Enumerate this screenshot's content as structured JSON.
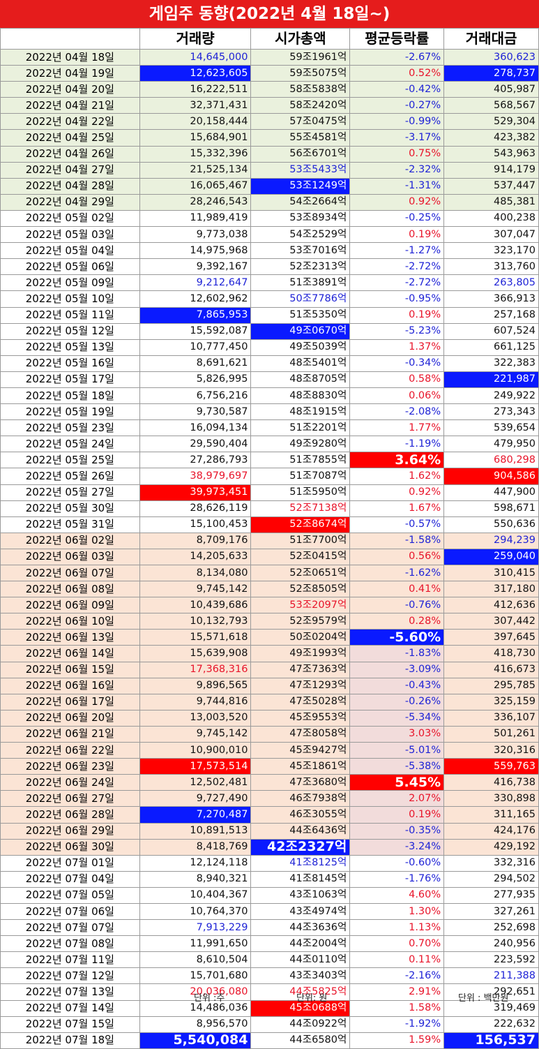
{
  "title": "게임주 동향(2022년 4월 18일~)",
  "headers": [
    "",
    "거래량",
    "시가총액",
    "평균등락률",
    "거래대금"
  ],
  "rows": [
    {
      "bg": "g",
      "date": "2022년 04월 18일",
      "vol": "14,645,000",
      "volS": "blue",
      "cap": "59조1961억",
      "capS": "black",
      "rate": "-2.67%",
      "rateS": "blue",
      "amt": "360,623",
      "amtS": "blue"
    },
    {
      "bg": "g",
      "date": "2022년 04월 19일",
      "vol": "12,623,605",
      "volS": "bgblue",
      "cap": "59조5075억",
      "capS": "black",
      "rate": "0.52%",
      "rateS": "red",
      "amt": "278,737",
      "amtS": "bgblue"
    },
    {
      "bg": "g",
      "date": "2022년 04월 20일",
      "vol": "16,222,511",
      "volS": "black",
      "cap": "58조5838억",
      "capS": "black",
      "rate": "-0.42%",
      "rateS": "blue",
      "amt": "405,987",
      "amtS": "black"
    },
    {
      "bg": "g",
      "date": "2022년 04월 21일",
      "vol": "32,371,431",
      "volS": "black",
      "cap": "58조2420억",
      "capS": "black",
      "rate": "-0.27%",
      "rateS": "blue",
      "amt": "568,567",
      "amtS": "black"
    },
    {
      "bg": "g",
      "date": "2022년 04월 22일",
      "vol": "20,158,444",
      "volS": "black",
      "cap": "57조0475억",
      "capS": "black",
      "rate": "-0.99%",
      "rateS": "blue",
      "amt": "529,304",
      "amtS": "black"
    },
    {
      "bg": "g",
      "date": "2022년 04월 25일",
      "vol": "15,684,901",
      "volS": "black",
      "cap": "55조4581억",
      "capS": "black",
      "rate": "-3.17%",
      "rateS": "blue",
      "amt": "423,382",
      "amtS": "black"
    },
    {
      "bg": "g",
      "date": "2022년 04월 26일",
      "vol": "15,332,396",
      "volS": "black",
      "cap": "56조6701억",
      "capS": "black",
      "rate": "0.75%",
      "rateS": "red",
      "amt": "543,963",
      "amtS": "black"
    },
    {
      "bg": "g",
      "date": "2022년 04월 27일",
      "vol": "21,525,134",
      "volS": "black",
      "cap": "53조5433억",
      "capS": "blue",
      "rate": "-2.32%",
      "rateS": "blue",
      "amt": "914,179",
      "amtS": "black"
    },
    {
      "bg": "g",
      "date": "2022년 04월 28일",
      "vol": "16,065,467",
      "volS": "black",
      "cap": "53조1249억",
      "capS": "bgblue",
      "rate": "-1.31%",
      "rateS": "blue",
      "amt": "537,447",
      "amtS": "black"
    },
    {
      "bg": "g",
      "date": "2022년 04월 29일",
      "vol": "28,246,543",
      "volS": "black",
      "cap": "54조2664억",
      "capS": "black",
      "rate": "0.92%",
      "rateS": "red",
      "amt": "485,381",
      "amtS": "black"
    },
    {
      "bg": "w",
      "date": "2022년 05월 02일",
      "vol": "11,989,419",
      "volS": "black",
      "cap": "53조8934억",
      "capS": "black",
      "rate": "-0.25%",
      "rateS": "blue",
      "amt": "400,238",
      "amtS": "black"
    },
    {
      "bg": "w",
      "date": "2022년 05월 03일",
      "vol": "9,773,038",
      "volS": "black",
      "cap": "54조2529억",
      "capS": "black",
      "rate": "0.19%",
      "rateS": "red",
      "amt": "307,047",
      "amtS": "black"
    },
    {
      "bg": "w",
      "date": "2022년 05월 04일",
      "vol": "14,975,968",
      "volS": "black",
      "cap": "53조7016억",
      "capS": "black",
      "rate": "-1.27%",
      "rateS": "blue",
      "amt": "323,170",
      "amtS": "black"
    },
    {
      "bg": "w",
      "date": "2022년 05월 06일",
      "vol": "9,392,167",
      "volS": "black",
      "cap": "52조2313억",
      "capS": "black",
      "rate": "-2.72%",
      "rateS": "blue",
      "amt": "313,760",
      "amtS": "black"
    },
    {
      "bg": "w",
      "date": "2022년 05월 09일",
      "vol": "9,212,647",
      "volS": "blue",
      "cap": "51조3891억",
      "capS": "black",
      "rate": "-2.72%",
      "rateS": "blue",
      "amt": "263,805",
      "amtS": "blue"
    },
    {
      "bg": "w",
      "date": "2022년 05월 10일",
      "vol": "12,602,962",
      "volS": "black",
      "cap": "50조7786억",
      "capS": "blue",
      "rate": "-0.95%",
      "rateS": "blue",
      "amt": "366,913",
      "amtS": "black"
    },
    {
      "bg": "w",
      "date": "2022년 05월 11일",
      "vol": "7,865,953",
      "volS": "bgblue",
      "cap": "51조5350억",
      "capS": "black",
      "rate": "0.19%",
      "rateS": "red",
      "amt": "257,168",
      "amtS": "black"
    },
    {
      "bg": "w",
      "date": "2022년 05월 12일",
      "vol": "15,592,087",
      "volS": "black",
      "cap": "49조0670억",
      "capS": "bgblue",
      "rate": "-5.23%",
      "rateS": "blue",
      "amt": "607,524",
      "amtS": "black"
    },
    {
      "bg": "w",
      "date": "2022년 05월 13일",
      "vol": "10,777,450",
      "volS": "black",
      "cap": "49조5039억",
      "capS": "black",
      "rate": "1.37%",
      "rateS": "red",
      "amt": "661,125",
      "amtS": "black"
    },
    {
      "bg": "w",
      "date": "2022년 05월 16일",
      "vol": "8,691,621",
      "volS": "black",
      "cap": "48조5401억",
      "capS": "black",
      "rate": "-0.34%",
      "rateS": "blue",
      "amt": "322,383",
      "amtS": "black"
    },
    {
      "bg": "w",
      "date": "2022년 05월 17일",
      "vol": "5,826,995",
      "volS": "black",
      "cap": "48조8705억",
      "capS": "black",
      "rate": "0.58%",
      "rateS": "red",
      "amt": "221,987",
      "amtS": "bgblue"
    },
    {
      "bg": "w",
      "date": "2022년 05월 18일",
      "vol": "6,756,216",
      "volS": "black",
      "cap": "48조8830억",
      "capS": "black",
      "rate": "0.06%",
      "rateS": "red",
      "amt": "249,922",
      "amtS": "black"
    },
    {
      "bg": "w",
      "date": "2022년 05월 19일",
      "vol": "9,730,587",
      "volS": "black",
      "cap": "48조1915억",
      "capS": "black",
      "rate": "-2.08%",
      "rateS": "blue",
      "amt": "273,343",
      "amtS": "black"
    },
    {
      "bg": "w",
      "date": "2022년 05월 23일",
      "vol": "16,094,134",
      "volS": "black",
      "cap": "51조2201억",
      "capS": "black",
      "rate": "1.77%",
      "rateS": "red",
      "amt": "539,654",
      "amtS": "black"
    },
    {
      "bg": "w",
      "date": "2022년 05월 24일",
      "vol": "29,590,404",
      "volS": "black",
      "cap": "49조9280억",
      "capS": "black",
      "rate": "-1.19%",
      "rateS": "blue",
      "amt": "479,950",
      "amtS": "black"
    },
    {
      "bg": "w",
      "date": "2022년 05월 25일",
      "vol": "27,286,793",
      "volS": "black",
      "cap": "51조7855억",
      "capS": "black",
      "rate": "3.64%",
      "rateS": "bgred big",
      "amt": "680,298",
      "amtS": "red"
    },
    {
      "bg": "w",
      "date": "2022년 05월 26일",
      "vol": "38,979,697",
      "volS": "red",
      "cap": "51조7087억",
      "capS": "black",
      "rate": "1.62%",
      "rateS": "red",
      "amt": "904,586",
      "amtS": "bgred"
    },
    {
      "bg": "w",
      "date": "2022년 05월 27일",
      "vol": "39,973,451",
      "volS": "bgred",
      "cap": "51조5950억",
      "capS": "black",
      "rate": "0.92%",
      "rateS": "red",
      "amt": "447,900",
      "amtS": "black"
    },
    {
      "bg": "w",
      "date": "2022년 05월 30일",
      "vol": "28,626,119",
      "volS": "black",
      "cap": "52조7138억",
      "capS": "red",
      "rate": "1.67%",
      "rateS": "red",
      "amt": "598,671",
      "amtS": "black"
    },
    {
      "bg": "w",
      "date": "2022년 05월 31일",
      "vol": "15,100,453",
      "volS": "black",
      "cap": "52조8674억",
      "capS": "bgred",
      "rate": "-0.57%",
      "rateS": "blue",
      "amt": "550,636",
      "amtS": "black"
    },
    {
      "bg": "p",
      "date": "2022년 06월 02일",
      "vol": "8,709,176",
      "volS": "black",
      "cap": "51조7700억",
      "capS": "black",
      "rate": "-1.58%",
      "rateS": "blue",
      "amt": "294,239",
      "amtS": "blue"
    },
    {
      "bg": "p",
      "date": "2022년 06월 03일",
      "vol": "14,205,633",
      "volS": "black",
      "cap": "52조0415억",
      "capS": "black",
      "rate": "0.56%",
      "rateS": "red",
      "amt": "259,040",
      "amtS": "bgblue"
    },
    {
      "bg": "p",
      "date": "2022년 06월 07일",
      "vol": "8,134,080",
      "volS": "black",
      "cap": "52조0651억",
      "capS": "black",
      "rate": "-1.62%",
      "rateS": "blue",
      "amt": "310,415",
      "amtS": "black"
    },
    {
      "bg": "p",
      "date": "2022년 06월 08일",
      "vol": "9,745,142",
      "volS": "black",
      "cap": "52조8505억",
      "capS": "black",
      "rate": "0.41%",
      "rateS": "red",
      "amt": "317,180",
      "amtS": "black"
    },
    {
      "bg": "p",
      "date": "2022년 06월 09일",
      "vol": "10,439,686",
      "volS": "black",
      "cap": "53조2097억",
      "capS": "red",
      "rate": "-0.76%",
      "rateS": "blue",
      "amt": "412,636",
      "amtS": "black"
    },
    {
      "bg": "p",
      "date": "2022년 06월 10일",
      "vol": "10,132,793",
      "volS": "black",
      "cap": "52조9579억",
      "capS": "black",
      "rate": "0.28%",
      "rateS": "red",
      "amt": "307,442",
      "amtS": "black"
    },
    {
      "bg": "p",
      "date": "2022년 06월 13일",
      "vol": "15,571,618",
      "volS": "black",
      "cap": "50조0204억",
      "capS": "black",
      "rate": "-5.60%",
      "rateS": "bgblue big",
      "amt": "397,645",
      "amtS": "black"
    },
    {
      "bg": "p",
      "date": "2022년 06월 14일",
      "vol": "15,639,908",
      "volS": "black",
      "cap": "49조1993억",
      "capS": "black",
      "rate": "-1.83%",
      "rateS": "blue bgpink",
      "amt": "418,730",
      "amtS": "black"
    },
    {
      "bg": "p",
      "date": "2022년 06월 15일",
      "vol": "17,368,316",
      "volS": "red",
      "cap": "47조7363억",
      "capS": "black",
      "rate": "-3.09%",
      "rateS": "blue bgpink",
      "amt": "416,673",
      "amtS": "black"
    },
    {
      "bg": "p",
      "date": "2022년 06월 16일",
      "vol": "9,896,565",
      "volS": "black",
      "cap": "47조1293억",
      "capS": "black",
      "rate": "-0.43%",
      "rateS": "blue bgpink",
      "amt": "295,785",
      "amtS": "black"
    },
    {
      "bg": "p",
      "date": "2022년 06월 17일",
      "vol": "9,744,816",
      "volS": "black",
      "cap": "47조5028억",
      "capS": "black",
      "rate": "-0.26%",
      "rateS": "blue bgpink",
      "amt": "325,159",
      "amtS": "black"
    },
    {
      "bg": "p",
      "date": "2022년 06월 20일",
      "vol": "13,003,520",
      "volS": "black",
      "cap": "45조9553억",
      "capS": "black",
      "rate": "-5.34%",
      "rateS": "blue bgpink",
      "amt": "336,107",
      "amtS": "black"
    },
    {
      "bg": "p",
      "date": "2022년 06월 21일",
      "vol": "9,745,142",
      "volS": "black",
      "cap": "47조8058억",
      "capS": "black",
      "rate": "3.03%",
      "rateS": "red bgpink",
      "amt": "501,261",
      "amtS": "black"
    },
    {
      "bg": "p",
      "date": "2022년 06월 22일",
      "vol": "10,900,010",
      "volS": "black",
      "cap": "45조9427억",
      "capS": "black",
      "rate": "-5.01%",
      "rateS": "blue bgpink",
      "amt": "320,316",
      "amtS": "black"
    },
    {
      "bg": "p",
      "date": "2022년 06월 23일",
      "vol": "17,573,514",
      "volS": "bgred",
      "cap": "45조1861억",
      "capS": "black",
      "rate": "-5.38%",
      "rateS": "blue bgpink",
      "amt": "559,763",
      "amtS": "bgred"
    },
    {
      "bg": "p",
      "date": "2022년 06월 24일",
      "vol": "12,502,481",
      "volS": "black",
      "cap": "47조3680억",
      "capS": "black",
      "rate": "5.45%",
      "rateS": "bgred big",
      "amt": "416,738",
      "amtS": "black"
    },
    {
      "bg": "p",
      "date": "2022년 06월 27일",
      "vol": "9,727,490",
      "volS": "black",
      "cap": "46조7938억",
      "capS": "black",
      "rate": "2.07%",
      "rateS": "red bgpink",
      "amt": "330,898",
      "amtS": "black"
    },
    {
      "bg": "p",
      "date": "2022년 06월 28일",
      "vol": "7,270,487",
      "volS": "bgblue",
      "cap": "46조3055억",
      "capS": "black",
      "rate": "0.19%",
      "rateS": "red bgpink",
      "amt": "311,165",
      "amtS": "black"
    },
    {
      "bg": "p",
      "date": "2022년 06월 29일",
      "vol": "10,891,513",
      "volS": "black",
      "cap": "44조6436억",
      "capS": "black",
      "rate": "-0.35%",
      "rateS": "blue bgpink",
      "amt": "424,176",
      "amtS": "black"
    },
    {
      "bg": "p",
      "date": "2022년 06월 30일",
      "vol": "8,418,769",
      "volS": "black",
      "cap": "42조2327억",
      "capS": "bgblue big",
      "rate": "-3.24%",
      "rateS": "blue bgpink",
      "amt": "429,192",
      "amtS": "black"
    },
    {
      "bg": "w",
      "date": "2022년 07월 01일",
      "vol": "12,124,118",
      "volS": "black",
      "cap": "41조8125억",
      "capS": "blue",
      "rate": "-0.60%",
      "rateS": "blue",
      "amt": "332,316",
      "amtS": "black"
    },
    {
      "bg": "w",
      "date": "2022년 07월 04일",
      "vol": "8,940,321",
      "volS": "black",
      "cap": "41조8145억",
      "capS": "black",
      "rate": "-1.76%",
      "rateS": "blue",
      "amt": "294,502",
      "amtS": "black"
    },
    {
      "bg": "w",
      "date": "2022년 07월 05일",
      "vol": "10,404,367",
      "volS": "black",
      "cap": "43조1063억",
      "capS": "black",
      "rate": "4.60%",
      "rateS": "red",
      "amt": "277,935",
      "amtS": "black"
    },
    {
      "bg": "w",
      "date": "2022년 07월 06일",
      "vol": "10,764,370",
      "volS": "black",
      "cap": "43조4974억",
      "capS": "black",
      "rate": "1.30%",
      "rateS": "red",
      "amt": "327,261",
      "amtS": "black"
    },
    {
      "bg": "w",
      "date": "2022년 07월 07일",
      "vol": "7,913,229",
      "volS": "blue",
      "cap": "44조3636억",
      "capS": "black",
      "rate": "1.13%",
      "rateS": "red",
      "amt": "252,698",
      "amtS": "black"
    },
    {
      "bg": "w",
      "date": "2022년 07월 08일",
      "vol": "11,991,650",
      "volS": "black",
      "cap": "44조2004억",
      "capS": "black",
      "rate": "0.70%",
      "rateS": "red",
      "amt": "240,956",
      "amtS": "black"
    },
    {
      "bg": "w",
      "date": "2022년 07월 11일",
      "vol": "8,610,504",
      "volS": "black",
      "cap": "44조0110억",
      "capS": "black",
      "rate": "0.11%",
      "rateS": "red",
      "amt": "223,592",
      "amtS": "black"
    },
    {
      "bg": "w",
      "date": "2022년 07월 12일",
      "vol": "15,701,680",
      "volS": "black",
      "cap": "43조3403억",
      "capS": "black",
      "rate": "-2.16%",
      "rateS": "blue",
      "amt": "211,388",
      "amtS": "blue"
    },
    {
      "bg": "w",
      "date": "2022년 07월 13일",
      "vol": "20,036,080",
      "volS": "red",
      "cap": "44조5825억",
      "capS": "red",
      "rate": "2.91%",
      "rateS": "red",
      "amt": "292,651",
      "amtS": "black"
    },
    {
      "bg": "w",
      "date": "2022년 07월 14일",
      "vol": "14,486,036",
      "volS": "black",
      "cap": "45조0688억",
      "capS": "bgred",
      "rate": "1.58%",
      "rateS": "red",
      "amt": "319,469",
      "amtS": "black"
    },
    {
      "bg": "w",
      "date": "2022년 07월 15일",
      "vol": "8,956,570",
      "volS": "black",
      "cap": "44조0922억",
      "capS": "black",
      "rate": "-1.92%",
      "rateS": "blue",
      "amt": "222,632",
      "amtS": "black"
    },
    {
      "bg": "w last",
      "date": "2022년 07월 18일",
      "vol": "5,540,084",
      "volS": "bgblue big",
      "cap": "44조6580억",
      "capS": "black",
      "rate": "1.59%",
      "rateS": "red",
      "amt": "156,537",
      "amtS": "bgblue big"
    }
  ],
  "footer": {
    "unit_vol": "단위 :주",
    "unit_cap": "단위: 원",
    "unit_amt": "단위 : 백만원"
  }
}
